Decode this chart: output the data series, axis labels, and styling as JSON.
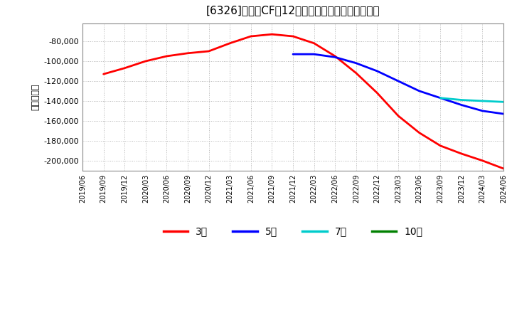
{
  "title": "[6326]　投賄CFの12か月移動合計の平均値の推移",
  "ylabel": "（百万円）",
  "ylim": [
    -210000,
    -62000
  ],
  "yticks": [
    -200000,
    -180000,
    -160000,
    -140000,
    -120000,
    -100000,
    -80000
  ],
  "background_color": "#ffffff",
  "plot_bg_color": "#ffffff",
  "grid_color": "#aaaaaa",
  "series": {
    "3年": {
      "color": "#ff0000",
      "x": [
        "2019/09",
        "2019/12",
        "2020/03",
        "2020/06",
        "2020/09",
        "2020/12",
        "2021/03",
        "2021/06",
        "2021/09",
        "2021/12",
        "2022/03",
        "2022/06",
        "2022/09",
        "2022/12",
        "2023/03",
        "2023/06",
        "2023/09",
        "2023/12",
        "2024/03",
        "2024/06"
      ],
      "y": [
        -113000,
        -107000,
        -100000,
        -95000,
        -92000,
        -90000,
        -82000,
        -75000,
        -73000,
        -75000,
        -82000,
        -95000,
        -112000,
        -132000,
        -155000,
        -172000,
        -185000,
        -193000,
        -200000,
        -208000
      ]
    },
    "5年": {
      "color": "#0000ff",
      "x": [
        "2021/12",
        "2022/03",
        "2022/06",
        "2022/09",
        "2022/12",
        "2023/03",
        "2023/06",
        "2023/09",
        "2023/12",
        "2024/03",
        "2024/06"
      ],
      "y": [
        -93000,
        -93000,
        -96000,
        -102000,
        -110000,
        -120000,
        -130000,
        -137000,
        -144000,
        -150000,
        -153000
      ]
    },
    "7年": {
      "color": "#00cccc",
      "x": [
        "2023/09",
        "2023/12",
        "2024/03",
        "2024/06"
      ],
      "y": [
        -137000,
        -139000,
        -140000,
        -141000
      ]
    },
    "10年": {
      "color": "#008000",
      "x": [],
      "y": []
    }
  },
  "legend_labels": [
    "3年",
    "5年",
    "7年",
    "10年"
  ],
  "legend_colors": [
    "#ff0000",
    "#0000ff",
    "#00cccc",
    "#008000"
  ],
  "x_start": "2019/06",
  "x_end": "2024/06",
  "x_ticks": [
    "2019/06",
    "2019/09",
    "2019/12",
    "2020/03",
    "2020/06",
    "2020/09",
    "2020/12",
    "2021/03",
    "2021/06",
    "2021/09",
    "2021/12",
    "2022/03",
    "2022/06",
    "2022/09",
    "2022/12",
    "2023/03",
    "2023/06",
    "2023/09",
    "2023/12",
    "2024/03",
    "2024/06"
  ]
}
